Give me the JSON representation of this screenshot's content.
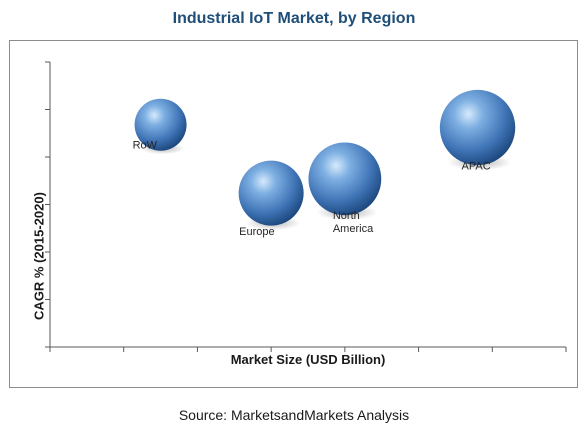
{
  "title": "Industrial IoT Market, by Region",
  "source": "Source: MarketsandMarkets Analysis",
  "colors": {
    "title": "#1f4e79",
    "bubble_light": "#c7e0f6",
    "bubble_mid": "#5b8fcb",
    "bubble_dark": "#1d4f8a",
    "axis": "#595959"
  },
  "chart_data": {
    "type": "scatter",
    "title": "Industrial IoT Market, by Region",
    "xlabel": "Market Size (USD Billion)",
    "ylabel": "CAGR % (2015-2020)",
    "grid": false,
    "x_tick_labels_shown": false,
    "y_tick_labels_shown": false,
    "xlim": [
      0,
      7
    ],
    "ylim": [
      0,
      5
    ],
    "series": [
      {
        "points": [
          {
            "label": "RoW",
            "x": 1.5,
            "y": 3.9,
            "size": 1.0
          },
          {
            "label": "Europe",
            "x": 3.0,
            "y": 2.7,
            "size": 1.25
          },
          {
            "label": "North America",
            "x": 4.0,
            "y": 2.95,
            "size": 1.4
          },
          {
            "label": "APAC",
            "x": 5.8,
            "y": 3.85,
            "size": 1.45
          }
        ]
      }
    ]
  }
}
